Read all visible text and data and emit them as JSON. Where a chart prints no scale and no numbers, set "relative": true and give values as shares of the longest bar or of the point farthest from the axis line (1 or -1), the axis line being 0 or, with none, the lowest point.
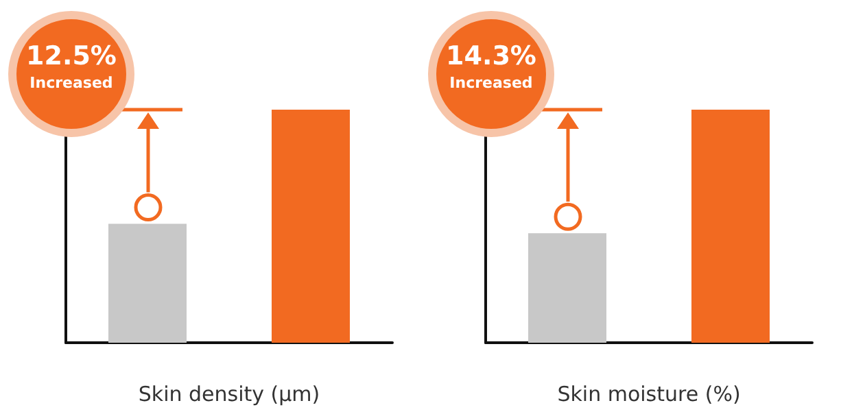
{
  "chart_data": [
    {
      "type": "bar",
      "relative": true,
      "categories": [
        null,
        null
      ],
      "colors": [
        "#c8c8c8",
        "#f26a21"
      ],
      "values": [
        0.51,
        1
      ],
      "xlabel": "Skin density (μm)",
      "annotations": [
        "12.5%",
        "Increased"
      ],
      "grid": false
    },
    {
      "type": "bar",
      "relative": true,
      "categories": [
        null,
        null
      ],
      "colors": [
        "#c8c8c8",
        "#f26a21"
      ],
      "values": [
        0.47,
        1
      ],
      "xlabel": "Skin moisture (%)",
      "annotations": [
        "14.3%",
        "Increased"
      ],
      "grid": false
    }
  ]
}
